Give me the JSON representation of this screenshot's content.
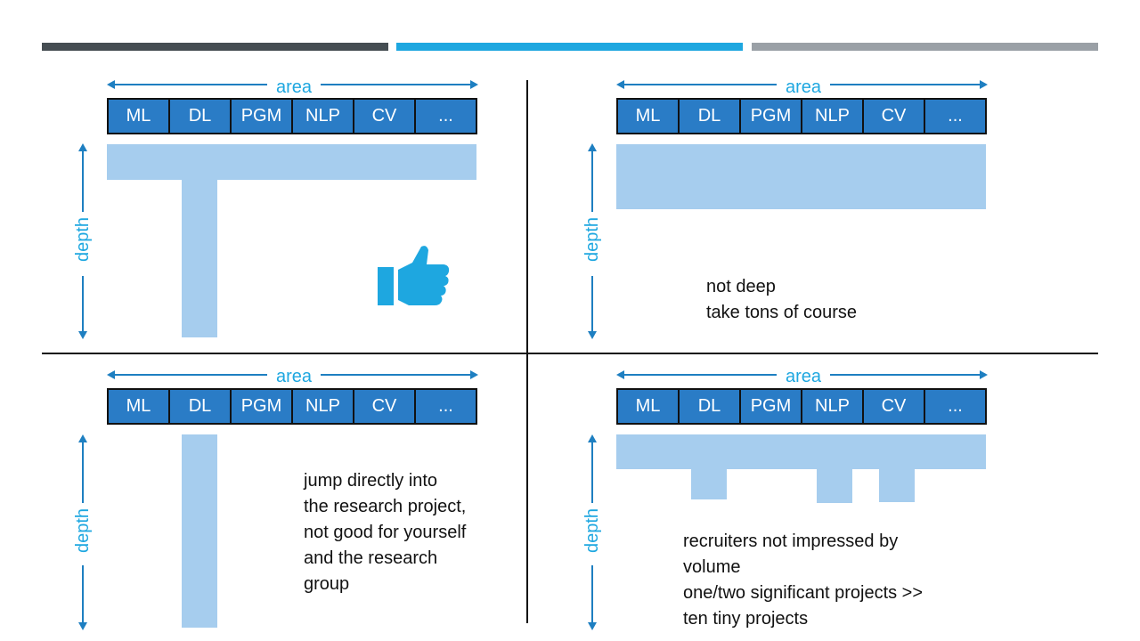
{
  "header_bars": [
    {
      "color": "#454d52"
    },
    {
      "color": "#1ea7e0"
    },
    {
      "color": "#9aa0a6"
    }
  ],
  "colors": {
    "category_fill": "#2a7cc6",
    "depth_fill": "#a6cdee",
    "label_blue": "#1ea7e0",
    "arrow_blue": "#1e7fc1"
  },
  "categories": [
    "ML",
    "DL",
    "PGM",
    "NLP",
    "CV",
    "..."
  ],
  "axis": {
    "area": "area",
    "depth": "depth"
  },
  "quadrants": {
    "top_left": {
      "icon": "thumbs-up-icon"
    },
    "top_right": {
      "notes": [
        "not deep",
        "take tons of course"
      ]
    },
    "bottom_left": {
      "notes": [
        "jump directly into",
        "the research project,",
        "not good for yourself",
        "and the research",
        "group"
      ]
    },
    "bottom_right": {
      "notes": [
        "recruiters not impressed by",
        "volume",
        "one/two significant projects >>",
        "ten tiny projects"
      ]
    }
  }
}
